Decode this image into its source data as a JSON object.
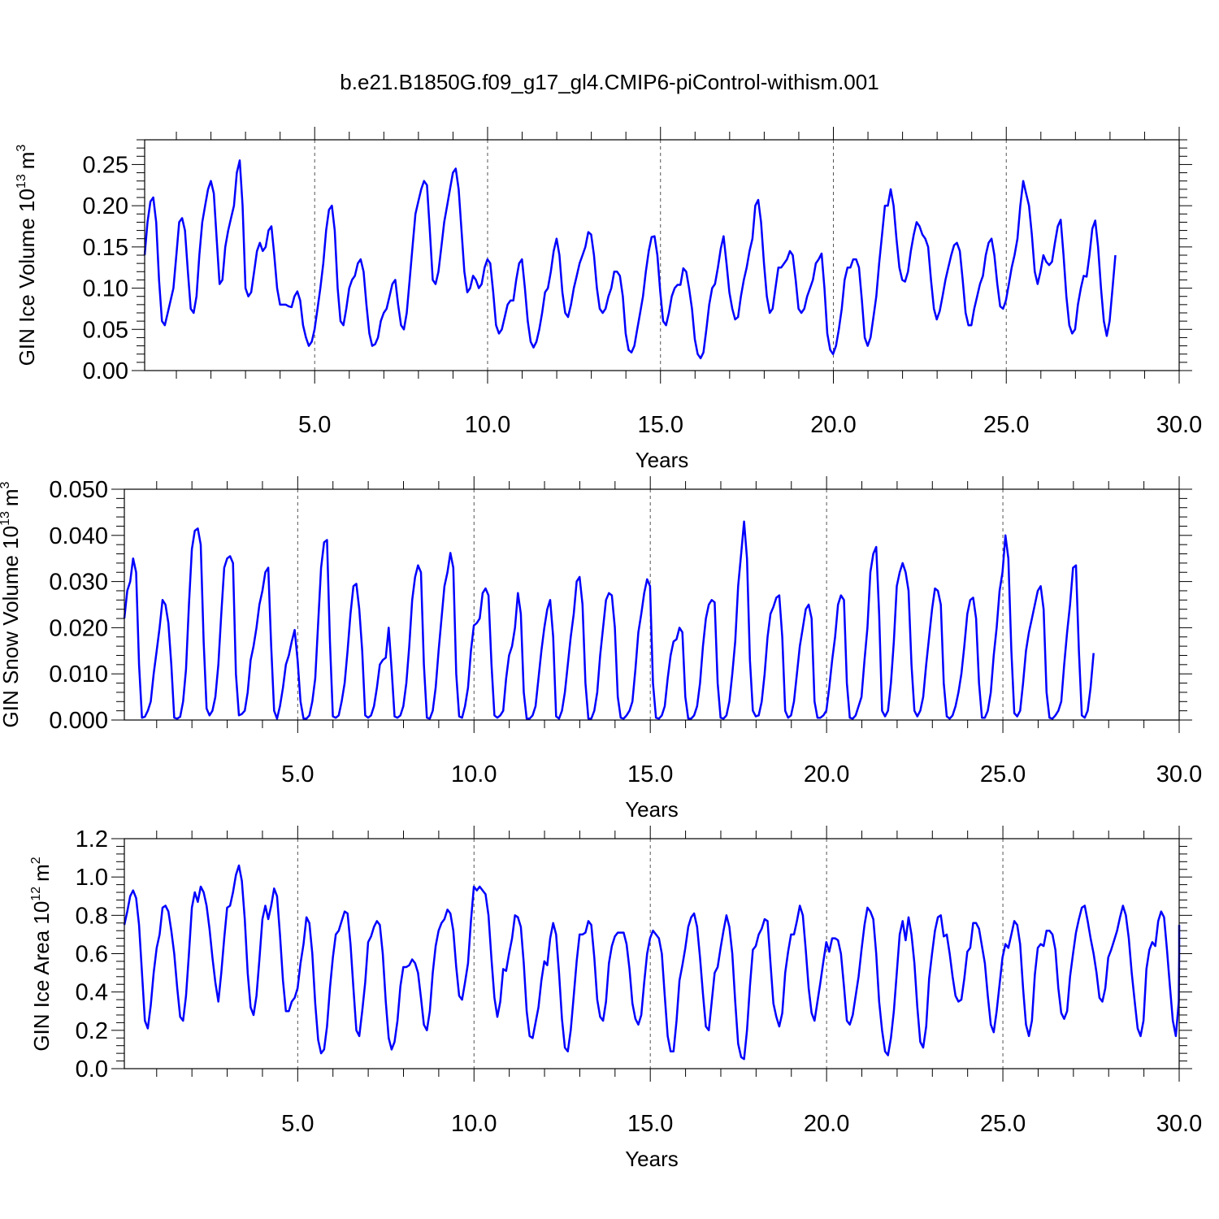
{
  "title": "b.e21.B1850G.f09_g17_gl4.CMIP6-piControl-withism.001",
  "colors": {
    "series": "#0000ff",
    "grid": "#555555",
    "axis": "#000000"
  },
  "chart_data": [
    {
      "type": "line",
      "xlabel": "Years",
      "ylabel": "GIN Ice Volume 10",
      "ylabel_exp": "13",
      "ylabel_unit": "m",
      "ylabel_unit_exp": "3",
      "xlim": [
        0.083,
        30.0
      ],
      "ylim": [
        0.0,
        0.28
      ],
      "xticks": [
        5,
        10,
        15,
        20,
        25,
        30
      ],
      "xtick_labels": [
        "5.0",
        "10.0",
        "15.0",
        "20.0",
        "25.0",
        "30.0"
      ],
      "yticks": [
        0,
        0.05,
        0.1,
        0.15,
        0.2,
        0.25
      ],
      "ytick_labels": [
        "0.00",
        "0.05",
        "0.10",
        "0.15",
        "0.20",
        "0.25"
      ],
      "grid_x": [
        5,
        10,
        15,
        20,
        25
      ],
      "x_start": 0.083,
      "x_step": 0.0833,
      "values": [
        0.14,
        0.18,
        0.205,
        0.21,
        0.18,
        0.11,
        0.06,
        0.055,
        0.07,
        0.085,
        0.1,
        0.14,
        0.18,
        0.185,
        0.17,
        0.12,
        0.075,
        0.07,
        0.09,
        0.14,
        0.18,
        0.2,
        0.22,
        0.23,
        0.215,
        0.16,
        0.105,
        0.11,
        0.15,
        0.17,
        0.185,
        0.2,
        0.24,
        0.255,
        0.2,
        0.1,
        0.09,
        0.095,
        0.12,
        0.145,
        0.155,
        0.145,
        0.15,
        0.17,
        0.175,
        0.14,
        0.1,
        0.08,
        0.08,
        0.08,
        0.078,
        0.077,
        0.09,
        0.096,
        0.085,
        0.055,
        0.04,
        0.03,
        0.035,
        0.05,
        0.075,
        0.1,
        0.13,
        0.17,
        0.195,
        0.2,
        0.17,
        0.1,
        0.06,
        0.055,
        0.075,
        0.1,
        0.11,
        0.115,
        0.13,
        0.135,
        0.12,
        0.08,
        0.045,
        0.03,
        0.032,
        0.04,
        0.06,
        0.07,
        0.075,
        0.09,
        0.105,
        0.11,
        0.08,
        0.055,
        0.05,
        0.07,
        0.11,
        0.15,
        0.19,
        0.205,
        0.22,
        0.23,
        0.225,
        0.17,
        0.11,
        0.105,
        0.12,
        0.15,
        0.18,
        0.2,
        0.22,
        0.24,
        0.245,
        0.22,
        0.17,
        0.12,
        0.095,
        0.1,
        0.115,
        0.11,
        0.1,
        0.105,
        0.125,
        0.135,
        0.13,
        0.095,
        0.055,
        0.045,
        0.05,
        0.065,
        0.08,
        0.085,
        0.085,
        0.11,
        0.13,
        0.135,
        0.1,
        0.06,
        0.035,
        0.028,
        0.035,
        0.05,
        0.07,
        0.095,
        0.1,
        0.12,
        0.145,
        0.16,
        0.14,
        0.095,
        0.07,
        0.065,
        0.08,
        0.1,
        0.115,
        0.13,
        0.14,
        0.15,
        0.168,
        0.165,
        0.14,
        0.1,
        0.075,
        0.07,
        0.075,
        0.09,
        0.1,
        0.12,
        0.12,
        0.115,
        0.09,
        0.045,
        0.025,
        0.022,
        0.03,
        0.05,
        0.07,
        0.09,
        0.12,
        0.145,
        0.162,
        0.163,
        0.14,
        0.095,
        0.06,
        0.055,
        0.07,
        0.09,
        0.1,
        0.104,
        0.104,
        0.124,
        0.12,
        0.1,
        0.075,
        0.038,
        0.02,
        0.015,
        0.022,
        0.05,
        0.08,
        0.1,
        0.105,
        0.125,
        0.148,
        0.163,
        0.13,
        0.095,
        0.075,
        0.062,
        0.065,
        0.09,
        0.11,
        0.125,
        0.145,
        0.16,
        0.2,
        0.207,
        0.18,
        0.13,
        0.09,
        0.07,
        0.075,
        0.1,
        0.125,
        0.125,
        0.13,
        0.135,
        0.145,
        0.14,
        0.11,
        0.075,
        0.07,
        0.075,
        0.09,
        0.1,
        0.11,
        0.13,
        0.135,
        0.142,
        0.1,
        0.045,
        0.025,
        0.02,
        0.03,
        0.05,
        0.075,
        0.11,
        0.125,
        0.125,
        0.135,
        0.135,
        0.125,
        0.085,
        0.04,
        0.03,
        0.04,
        0.065,
        0.09,
        0.13,
        0.165,
        0.2,
        0.2,
        0.22,
        0.2,
        0.16,
        0.125,
        0.11,
        0.108,
        0.12,
        0.145,
        0.165,
        0.18,
        0.175,
        0.165,
        0.16,
        0.15,
        0.11,
        0.075,
        0.062,
        0.072,
        0.09,
        0.11,
        0.125,
        0.14,
        0.152,
        0.155,
        0.145,
        0.11,
        0.07,
        0.055,
        0.055,
        0.075,
        0.09,
        0.105,
        0.115,
        0.14,
        0.155,
        0.16,
        0.14,
        0.105,
        0.078,
        0.075,
        0.085,
        0.105,
        0.125,
        0.14,
        0.16,
        0.2,
        0.23,
        0.215,
        0.2,
        0.165,
        0.12,
        0.105,
        0.12,
        0.14,
        0.132,
        0.128,
        0.132,
        0.155,
        0.175,
        0.183,
        0.14,
        0.09,
        0.055,
        0.045,
        0.05,
        0.08,
        0.1,
        0.115,
        0.114,
        0.14,
        0.172,
        0.182,
        0.15,
        0.1,
        0.06,
        0.042,
        0.06,
        0.1,
        0.14
      ]
    },
    {
      "type": "line",
      "xlabel": "Years",
      "ylabel": "GIN Snow Volume 10",
      "ylabel_exp": "13",
      "ylabel_unit": "m",
      "ylabel_unit_exp": "3",
      "xlim": [
        0.083,
        30.0
      ],
      "ylim": [
        0.0,
        0.05
      ],
      "xticks": [
        5,
        10,
        15,
        20,
        25,
        30
      ],
      "xtick_labels": [
        "5.0",
        "10.0",
        "15.0",
        "20.0",
        "25.0",
        "30.0"
      ],
      "yticks": [
        0,
        0.01,
        0.02,
        0.03,
        0.04,
        0.05
      ],
      "ytick_labels": [
        "0.000",
        "0.010",
        "0.020",
        "0.030",
        "0.040",
        "0.050"
      ],
      "grid_x": [
        5,
        10,
        15,
        20,
        25
      ],
      "x_start": 0.083,
      "x_step": 0.0833,
      "values": [
        0.022,
        0.028,
        0.03,
        0.035,
        0.032,
        0.012,
        0.0005,
        0.0007,
        0.002,
        0.004,
        0.01,
        0.015,
        0.02,
        0.026,
        0.025,
        0.021,
        0.012,
        0.0005,
        0.0003,
        0.0007,
        0.004,
        0.011,
        0.025,
        0.037,
        0.041,
        0.0415,
        0.038,
        0.017,
        0.0025,
        0.001,
        0.002,
        0.005,
        0.012,
        0.023,
        0.033,
        0.035,
        0.0355,
        0.034,
        0.01,
        0.001,
        0.0013,
        0.002,
        0.006,
        0.013,
        0.016,
        0.02,
        0.025,
        0.028,
        0.032,
        0.033,
        0.016,
        0.002,
        0.0003,
        0.003,
        0.007,
        0.012,
        0.014,
        0.017,
        0.0195,
        0.013,
        0.004,
        0.0003,
        0.0003,
        0.001,
        0.004,
        0.009,
        0.021,
        0.033,
        0.0385,
        0.039,
        0.017,
        0.0008,
        0.0005,
        0.001,
        0.004,
        0.008,
        0.015,
        0.023,
        0.029,
        0.0295,
        0.024,
        0.015,
        0.001,
        0.0005,
        0.001,
        0.003,
        0.007,
        0.012,
        0.013,
        0.0135,
        0.02,
        0.011,
        0.0008,
        0.0005,
        0.001,
        0.003,
        0.008,
        0.016,
        0.026,
        0.031,
        0.0335,
        0.032,
        0.012,
        0.0005,
        0.0003,
        0.002,
        0.007,
        0.015,
        0.022,
        0.029,
        0.032,
        0.0362,
        0.033,
        0.01,
        0.0008,
        0.0005,
        0.003,
        0.007,
        0.015,
        0.0205,
        0.021,
        0.022,
        0.0275,
        0.0285,
        0.027,
        0.012,
        0.001,
        0.0005,
        0.001,
        0.002,
        0.009,
        0.014,
        0.016,
        0.02,
        0.0275,
        0.023,
        0.006,
        0.0003,
        0.0003,
        0.001,
        0.003,
        0.009,
        0.015,
        0.02,
        0.024,
        0.026,
        0.018,
        0.0008,
        0.0003,
        0.002,
        0.006,
        0.012,
        0.018,
        0.023,
        0.03,
        0.031,
        0.025,
        0.008,
        0.0003,
        0.0003,
        0.002,
        0.006,
        0.014,
        0.02,
        0.026,
        0.0275,
        0.027,
        0.02,
        0.005,
        0.0005,
        0.0003,
        0.001,
        0.002,
        0.004,
        0.011,
        0.019,
        0.023,
        0.0275,
        0.0305,
        0.029,
        0.008,
        0.0005,
        0.0003,
        0.001,
        0.003,
        0.009,
        0.014,
        0.017,
        0.0175,
        0.02,
        0.019,
        0.005,
        0.0003,
        0.0003,
        0.001,
        0.003,
        0.008,
        0.016,
        0.022,
        0.025,
        0.026,
        0.0255,
        0.008,
        0.0005,
        0.0003,
        0.001,
        0.004,
        0.01,
        0.017,
        0.029,
        0.036,
        0.043,
        0.035,
        0.013,
        0.002,
        0.0008,
        0.001,
        0.004,
        0.01,
        0.018,
        0.023,
        0.0245,
        0.0265,
        0.027,
        0.018,
        0.002,
        0.0005,
        0.001,
        0.004,
        0.01,
        0.016,
        0.02,
        0.024,
        0.025,
        0.022,
        0.004,
        0.0005,
        0.0005,
        0.001,
        0.002,
        0.007,
        0.013,
        0.018,
        0.025,
        0.027,
        0.026,
        0.008,
        0.0005,
        0.0003,
        0.001,
        0.003,
        0.005,
        0.013,
        0.02,
        0.032,
        0.036,
        0.0375,
        0.023,
        0.002,
        0.0008,
        0.002,
        0.008,
        0.017,
        0.029,
        0.032,
        0.034,
        0.032,
        0.028,
        0.012,
        0.002,
        0.0008,
        0.002,
        0.005,
        0.012,
        0.018,
        0.024,
        0.0285,
        0.028,
        0.025,
        0.008,
        0.0008,
        0.0003,
        0.001,
        0.003,
        0.006,
        0.01,
        0.016,
        0.023,
        0.026,
        0.0265,
        0.022,
        0.008,
        0.0005,
        0.0005,
        0.002,
        0.006,
        0.014,
        0.02,
        0.028,
        0.032,
        0.04,
        0.035,
        0.015,
        0.0015,
        0.0008,
        0.002,
        0.008,
        0.015,
        0.019,
        0.022,
        0.025,
        0.028,
        0.029,
        0.024,
        0.006,
        0.0005,
        0.0003,
        0.001,
        0.002,
        0.004,
        0.012,
        0.019,
        0.025,
        0.033,
        0.0335,
        0.015,
        0.001,
        0.0005,
        0.002,
        0.007,
        0.0145
      ]
    },
    {
      "type": "line",
      "xlabel": "Years",
      "ylabel": "GIN Ice Area 10",
      "ylabel_exp": "12",
      "ylabel_unit": "m",
      "ylabel_unit_exp": "2",
      "xlim": [
        0.083,
        30.0
      ],
      "ylim": [
        0.0,
        1.2
      ],
      "xticks": [
        5,
        10,
        15,
        20,
        25,
        30
      ],
      "xtick_labels": [
        "5.0",
        "10.0",
        "15.0",
        "20.0",
        "25.0",
        "30.0"
      ],
      "yticks": [
        0,
        0.2,
        0.4,
        0.6,
        0.8,
        1.0,
        1.2
      ],
      "ytick_labels": [
        "0.0",
        "0.2",
        "0.4",
        "0.6",
        "0.8",
        "1.0",
        "1.2"
      ],
      "grid_x": [
        5,
        10,
        15,
        20,
        25
      ],
      "x_start": 0.083,
      "x_step": 0.0833,
      "values": [
        0.75,
        0.82,
        0.9,
        0.93,
        0.89,
        0.75,
        0.5,
        0.25,
        0.21,
        0.33,
        0.5,
        0.63,
        0.7,
        0.84,
        0.85,
        0.82,
        0.72,
        0.6,
        0.42,
        0.27,
        0.25,
        0.38,
        0.6,
        0.84,
        0.92,
        0.87,
        0.95,
        0.92,
        0.85,
        0.73,
        0.58,
        0.45,
        0.35,
        0.5,
        0.68,
        0.84,
        0.85,
        0.92,
        1.01,
        1.06,
        0.98,
        0.78,
        0.5,
        0.32,
        0.28,
        0.38,
        0.57,
        0.78,
        0.85,
        0.78,
        0.85,
        0.94,
        0.9,
        0.7,
        0.46,
        0.3,
        0.3,
        0.35,
        0.37,
        0.42,
        0.55,
        0.65,
        0.79,
        0.76,
        0.6,
        0.34,
        0.15,
        0.08,
        0.1,
        0.22,
        0.42,
        0.58,
        0.7,
        0.72,
        0.77,
        0.82,
        0.81,
        0.65,
        0.42,
        0.2,
        0.17,
        0.3,
        0.45,
        0.66,
        0.69,
        0.74,
        0.77,
        0.75,
        0.6,
        0.35,
        0.16,
        0.1,
        0.14,
        0.25,
        0.43,
        0.53,
        0.53,
        0.54,
        0.57,
        0.55,
        0.5,
        0.37,
        0.23,
        0.2,
        0.3,
        0.5,
        0.64,
        0.72,
        0.76,
        0.78,
        0.83,
        0.81,
        0.72,
        0.53,
        0.38,
        0.36,
        0.45,
        0.55,
        0.77,
        0.95,
        0.93,
        0.95,
        0.93,
        0.91,
        0.8,
        0.57,
        0.37,
        0.27,
        0.35,
        0.52,
        0.51,
        0.6,
        0.68,
        0.8,
        0.79,
        0.74,
        0.55,
        0.3,
        0.17,
        0.16,
        0.24,
        0.32,
        0.46,
        0.56,
        0.54,
        0.68,
        0.76,
        0.7,
        0.5,
        0.26,
        0.11,
        0.09,
        0.2,
        0.38,
        0.56,
        0.7,
        0.7,
        0.71,
        0.77,
        0.75,
        0.58,
        0.36,
        0.27,
        0.25,
        0.35,
        0.55,
        0.64,
        0.69,
        0.71,
        0.71,
        0.71,
        0.65,
        0.52,
        0.34,
        0.26,
        0.23,
        0.28,
        0.45,
        0.6,
        0.68,
        0.72,
        0.7,
        0.68,
        0.6,
        0.38,
        0.17,
        0.09,
        0.09,
        0.25,
        0.46,
        0.54,
        0.63,
        0.74,
        0.79,
        0.81,
        0.74,
        0.58,
        0.39,
        0.22,
        0.2,
        0.35,
        0.5,
        0.53,
        0.63,
        0.72,
        0.8,
        0.74,
        0.6,
        0.35,
        0.13,
        0.06,
        0.05,
        0.2,
        0.43,
        0.62,
        0.64,
        0.7,
        0.73,
        0.78,
        0.77,
        0.55,
        0.34,
        0.27,
        0.22,
        0.29,
        0.5,
        0.61,
        0.7,
        0.7,
        0.77,
        0.85,
        0.8,
        0.62,
        0.42,
        0.29,
        0.25,
        0.35,
        0.45,
        0.56,
        0.66,
        0.61,
        0.68,
        0.68,
        0.67,
        0.6,
        0.43,
        0.25,
        0.23,
        0.28,
        0.38,
        0.48,
        0.62,
        0.75,
        0.84,
        0.82,
        0.78,
        0.6,
        0.35,
        0.2,
        0.09,
        0.07,
        0.16,
        0.3,
        0.5,
        0.7,
        0.77,
        0.67,
        0.79,
        0.7,
        0.55,
        0.32,
        0.14,
        0.11,
        0.22,
        0.47,
        0.6,
        0.72,
        0.79,
        0.8,
        0.69,
        0.7,
        0.6,
        0.48,
        0.38,
        0.35,
        0.36,
        0.47,
        0.61,
        0.63,
        0.76,
        0.76,
        0.73,
        0.64,
        0.55,
        0.38,
        0.23,
        0.19,
        0.3,
        0.44,
        0.58,
        0.65,
        0.63,
        0.7,
        0.77,
        0.75,
        0.65,
        0.42,
        0.23,
        0.17,
        0.25,
        0.49,
        0.63,
        0.65,
        0.64,
        0.72,
        0.72,
        0.7,
        0.62,
        0.42,
        0.29,
        0.26,
        0.3,
        0.48,
        0.6,
        0.71,
        0.78,
        0.84,
        0.85,
        0.77,
        0.68,
        0.6,
        0.5,
        0.37,
        0.35,
        0.42,
        0.58,
        0.62,
        0.67,
        0.72,
        0.79,
        0.85,
        0.8,
        0.68,
        0.5,
        0.35,
        0.21,
        0.17,
        0.25,
        0.52,
        0.62,
        0.66,
        0.64,
        0.77,
        0.82,
        0.79,
        0.62,
        0.43,
        0.25,
        0.17,
        0.35,
        0.6,
        0.75
      ]
    }
  ]
}
